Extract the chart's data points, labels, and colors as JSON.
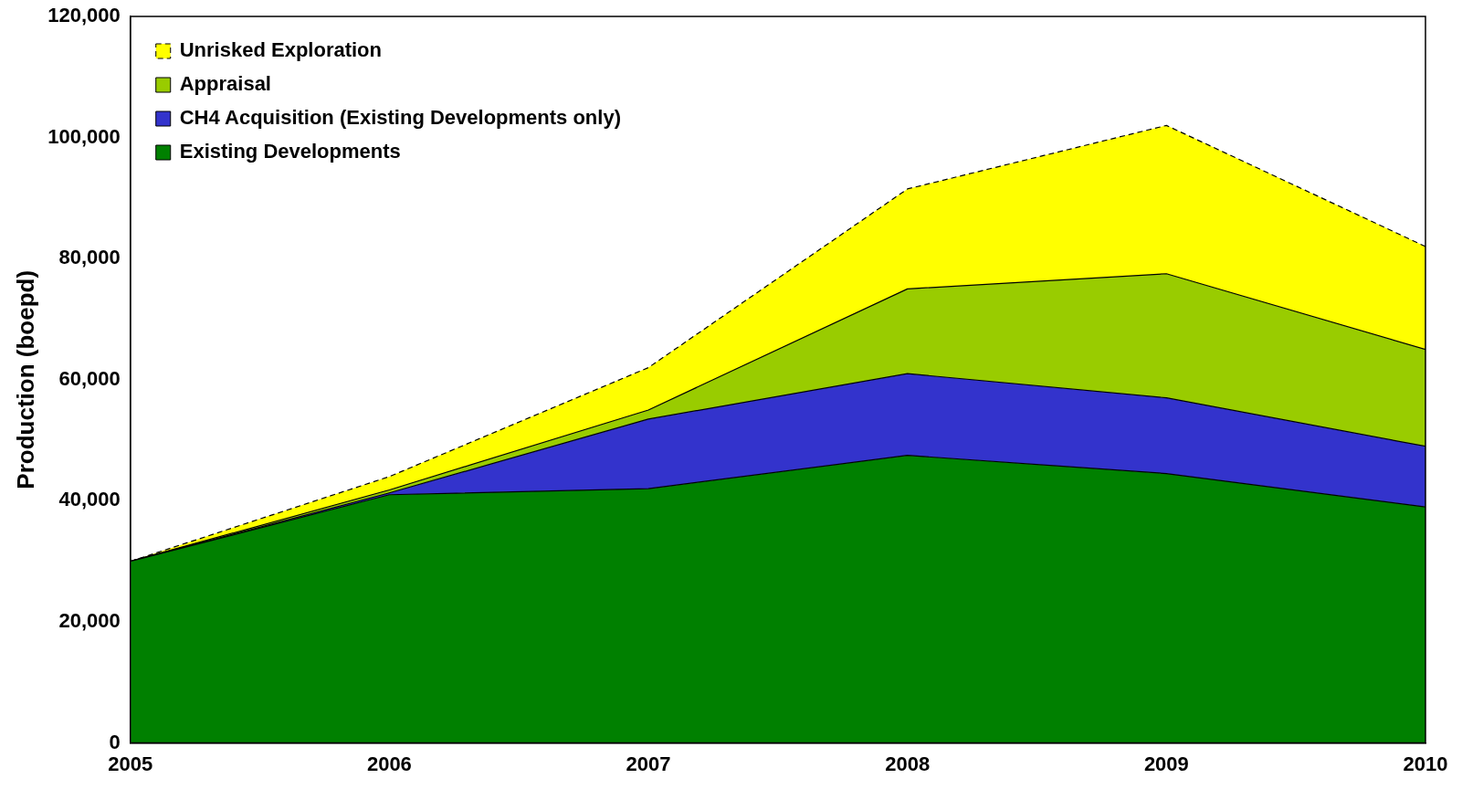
{
  "chart_data": {
    "type": "area",
    "stacked": true,
    "ylabel": "Production (boepd)",
    "x": [
      2005,
      2006,
      2007,
      2008,
      2009,
      2010
    ],
    "xlim": [
      2005,
      2010
    ],
    "xticks": [
      2005,
      2006,
      2007,
      2008,
      2009,
      2010
    ],
    "ylim": [
      0,
      120000
    ],
    "yticks": [
      0,
      {
        "value": 20000,
        "label": "20,000"
      },
      {
        "value": 40000,
        "label": "40,000"
      },
      {
        "value": 60000,
        "label": "60,000"
      },
      {
        "value": 80000,
        "label": "80,000"
      },
      {
        "value": 100000,
        "label": "100,000"
      },
      {
        "value": 120000,
        "label": "120,000"
      }
    ],
    "grid": false,
    "legend": "top left",
    "series": [
      {
        "name": "Existing Developments",
        "color": "#008000",
        "values": [
          30000,
          41000,
          42000,
          47500,
          44500,
          39000
        ]
      },
      {
        "name": "CH4 Acquisition (Existing Developments only)",
        "color": "#3333cc",
        "values": [
          0,
          300,
          11500,
          13500,
          12500,
          10000
        ]
      },
      {
        "name": "Appraisal",
        "color": "#99cc00",
        "values": [
          0,
          500,
          1500,
          14000,
          20500,
          16000
        ]
      },
      {
        "name": "Unrisked Exploration",
        "color": "#ffff00",
        "line_style": "dashed",
        "values": [
          0,
          2200,
          7000,
          16500,
          24500,
          17000
        ]
      }
    ]
  }
}
